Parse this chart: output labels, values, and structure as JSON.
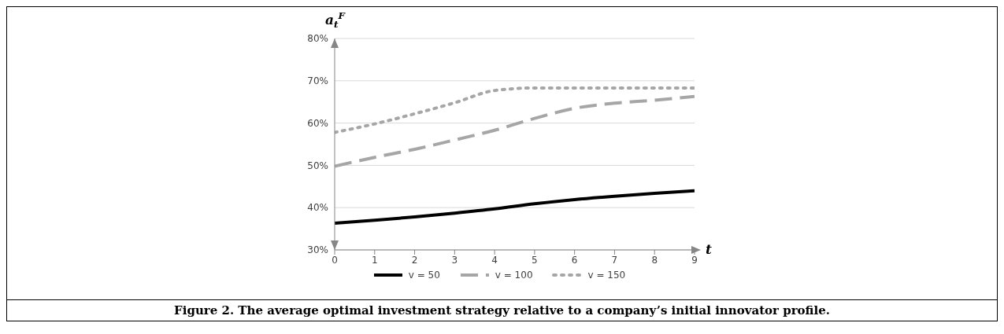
{
  "chart_data": {
    "type": "line",
    "ylabel": "a$_{t}$$^{F}$",
    "xlabel": "t",
    "x": [
      0,
      1,
      2,
      3,
      4,
      5,
      6,
      7,
      8,
      9
    ],
    "series": [
      {
        "name": "v = 50",
        "color": "#000000",
        "line_style": "solid",
        "values": [
          36.3,
          37.0,
          37.8,
          38.7,
          39.7,
          40.9,
          41.9,
          42.7,
          43.4,
          44.0
        ]
      },
      {
        "name": "v = 100",
        "color": "#a6a6a6",
        "line_style": "dashed",
        "values": [
          49.8,
          51.9,
          53.8,
          56.0,
          58.3,
          61.1,
          63.5,
          64.7,
          65.4,
          66.3
        ]
      },
      {
        "name": "v = 150",
        "color": "#a6a6a6",
        "line_style": "dotted",
        "values": [
          57.8,
          59.8,
          62.2,
          64.8,
          67.7,
          68.3,
          68.3,
          68.3,
          68.3,
          68.3
        ]
      }
    ],
    "xlim": [
      0,
      9
    ],
    "xticks": [
      0,
      1,
      2,
      3,
      4,
      5,
      6,
      7,
      8,
      9
    ],
    "ylim": [
      30,
      80
    ],
    "yticks": [
      {
        "value": 30,
        "label": "30%"
      },
      {
        "value": 40,
        "label": "40%"
      },
      {
        "value": 50,
        "label": "50%"
      },
      {
        "value": 60,
        "label": "60%"
      },
      {
        "value": 70,
        "label": "70%"
      },
      {
        "value": 80,
        "label": "80%"
      }
    ],
    "grid": "y",
    "legend": "bottom",
    "marker": "none",
    "annotations": [
      "Figure 2. The average optimal investment strategy relative to a company’s initial innovator profile."
    ]
  }
}
